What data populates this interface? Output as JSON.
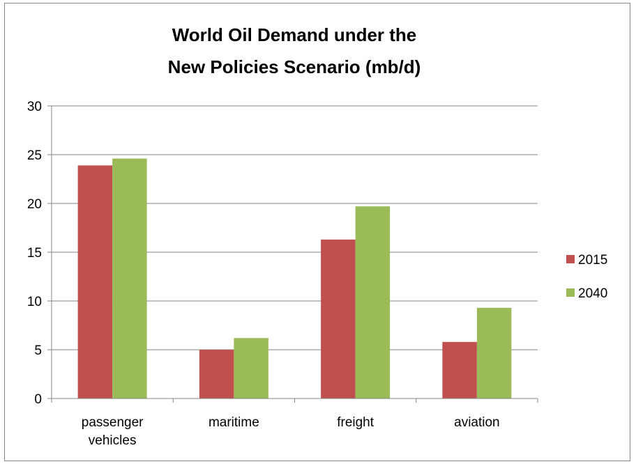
{
  "chart_data": {
    "type": "bar",
    "title_lines": [
      "World Oil Demand under the",
      "New Policies Scenario (mb/d)"
    ],
    "categories": [
      [
        "passenger",
        "vehicles"
      ],
      [
        "maritime"
      ],
      [
        "freight"
      ],
      [
        "aviation"
      ]
    ],
    "series": [
      {
        "name": "2015",
        "color": "#C0504D",
        "values": [
          23.9,
          5.0,
          16.3,
          5.8
        ]
      },
      {
        "name": "2040",
        "color": "#9BBB59",
        "values": [
          24.6,
          6.2,
          19.7,
          9.3
        ]
      }
    ],
    "ylim": [
      0,
      30
    ],
    "yticks": [
      0,
      5,
      10,
      15,
      20,
      25,
      30
    ],
    "grid": true,
    "legend_position": "right"
  }
}
